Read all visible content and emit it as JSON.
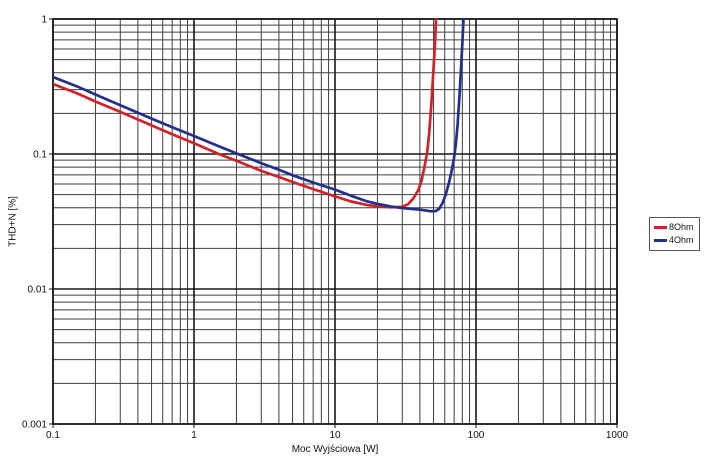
{
  "figure": {
    "background": "#ffffff",
    "grid_minor_color": "#3f3f3f",
    "grid_major_color": "#161616",
    "tick_label_color": "#111111"
  },
  "chart_data": {
    "type": "line",
    "title": "",
    "xlabel": "Moc Wyjściowa [W]",
    "ylabel": "THD+N [%]",
    "x_scale": "log",
    "y_scale": "log",
    "xlim": [
      0.1,
      1000
    ],
    "ylim": [
      0.001,
      1
    ],
    "grid": "on, log major+minor, dark gray",
    "legend_position": "outside-right, boxed",
    "x_ticks": [
      {
        "value": 0.1,
        "label": "0.1"
      },
      {
        "value": 1,
        "label": "1"
      },
      {
        "value": 10,
        "label": "10"
      },
      {
        "value": 100,
        "label": "100"
      },
      {
        "value": 1000,
        "label": "1000"
      }
    ],
    "y_ticks": [
      {
        "value": 1,
        "label": "1"
      },
      {
        "value": 0.1,
        "label": "0.1"
      },
      {
        "value": 0.01,
        "label": "0.01"
      },
      {
        "value": 0.001,
        "label": "0.001"
      }
    ],
    "series": [
      {
        "name": "8Ohm",
        "color": "#cc2428",
        "points": [
          [
            0.1,
            0.33
          ],
          [
            0.15,
            0.28
          ],
          [
            0.2,
            0.245
          ],
          [
            0.3,
            0.205
          ],
          [
            0.4,
            0.18
          ],
          [
            0.5,
            0.163
          ],
          [
            0.7,
            0.14
          ],
          [
            1,
            0.12
          ],
          [
            1.5,
            0.1
          ],
          [
            2,
            0.089
          ],
          [
            3,
            0.075
          ],
          [
            4,
            0.0675
          ],
          [
            5,
            0.062
          ],
          [
            7,
            0.055
          ],
          [
            10,
            0.0485
          ],
          [
            13,
            0.0445
          ],
          [
            17,
            0.0418
          ],
          [
            20,
            0.041
          ],
          [
            25,
            0.0403
          ],
          [
            30,
            0.0406
          ],
          [
            33,
            0.0425
          ],
          [
            36,
            0.047
          ],
          [
            39,
            0.054
          ],
          [
            41,
            0.063
          ],
          [
            43,
            0.079
          ],
          [
            45,
            0.102
          ],
          [
            46.5,
            0.14
          ],
          [
            48,
            0.22
          ],
          [
            49.5,
            0.36
          ],
          [
            51,
            0.62
          ],
          [
            52,
            1.0
          ],
          [
            52.5,
            1.4
          ]
        ]
      },
      {
        "name": "4Ohm",
        "color": "#232f8c",
        "points": [
          [
            0.1,
            0.372
          ],
          [
            0.15,
            0.315
          ],
          [
            0.2,
            0.276
          ],
          [
            0.3,
            0.23
          ],
          [
            0.4,
            0.202
          ],
          [
            0.5,
            0.183
          ],
          [
            0.7,
            0.158
          ],
          [
            1,
            0.136
          ],
          [
            1.5,
            0.114
          ],
          [
            2,
            0.101
          ],
          [
            3,
            0.0855
          ],
          [
            4,
            0.0765
          ],
          [
            5,
            0.0695
          ],
          [
            7,
            0.0615
          ],
          [
            10,
            0.0545
          ],
          [
            13,
            0.049
          ],
          [
            17,
            0.0445
          ],
          [
            20,
            0.0428
          ],
          [
            25,
            0.0408
          ],
          [
            30,
            0.0398
          ],
          [
            35,
            0.0392
          ],
          [
            40,
            0.0387
          ],
          [
            45,
            0.038
          ],
          [
            48,
            0.0376
          ],
          [
            52,
            0.0378
          ],
          [
            55,
            0.0395
          ],
          [
            58,
            0.0435
          ],
          [
            61,
            0.05
          ],
          [
            64,
            0.06
          ],
          [
            67,
            0.074
          ],
          [
            70,
            0.095
          ],
          [
            72,
            0.12
          ],
          [
            74,
            0.165
          ],
          [
            76,
            0.25
          ],
          [
            78,
            0.4
          ],
          [
            80,
            0.65
          ],
          [
            81.5,
            1.0
          ],
          [
            82,
            1.4
          ]
        ]
      }
    ]
  },
  "legend": {
    "items": [
      {
        "label": "8Ohm",
        "color": "#cc2428"
      },
      {
        "label": "4Ohm",
        "color": "#232f8c"
      }
    ]
  }
}
